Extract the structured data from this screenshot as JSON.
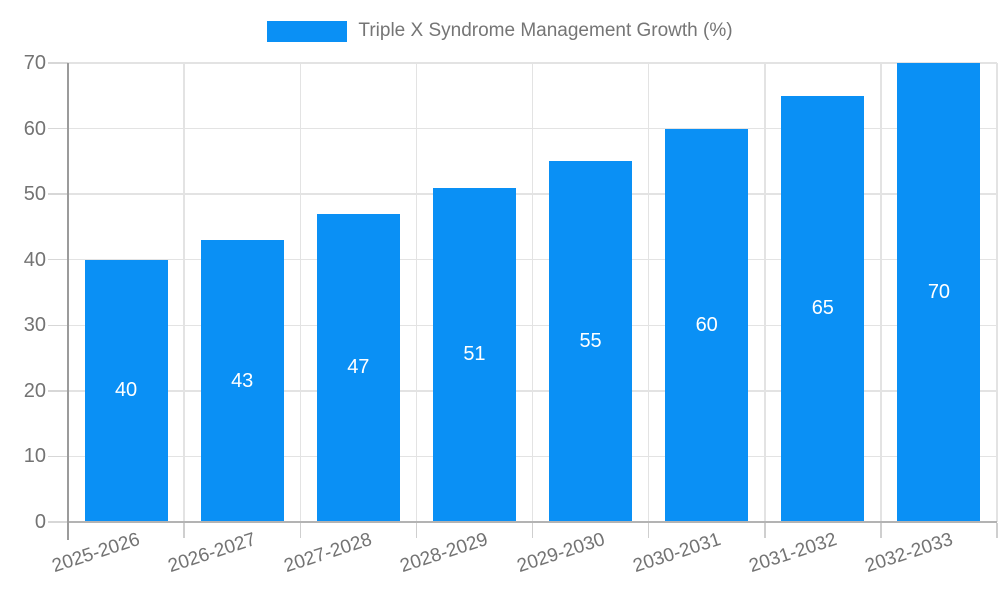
{
  "legend": {
    "series_label": "Triple X Syndrome Management Growth (%)",
    "swatch_color": "#0A90F5"
  },
  "chart_data": {
    "type": "bar",
    "title": "Triple X Syndrome Management Growth (%)",
    "categories": [
      "2025-2026",
      "2026-2027",
      "2027-2028",
      "2028-2029",
      "2029-2030",
      "2030-2031",
      "2031-2032",
      "2032-2033"
    ],
    "values": [
      40,
      43,
      47,
      51,
      55,
      60,
      65,
      70
    ],
    "xlabel": "",
    "ylabel": "",
    "ylim": [
      0,
      70
    ],
    "yticks": [
      0,
      10,
      20,
      30,
      40,
      50,
      60,
      70
    ],
    "grid": true,
    "legend_position": "top-center",
    "bar_color": "#0A90F5",
    "bar_label_color": "#ffffff",
    "axis_text_color": "#737373",
    "grid_line_color": "#e3e3e3",
    "x_label_rotation_deg": -18
  }
}
